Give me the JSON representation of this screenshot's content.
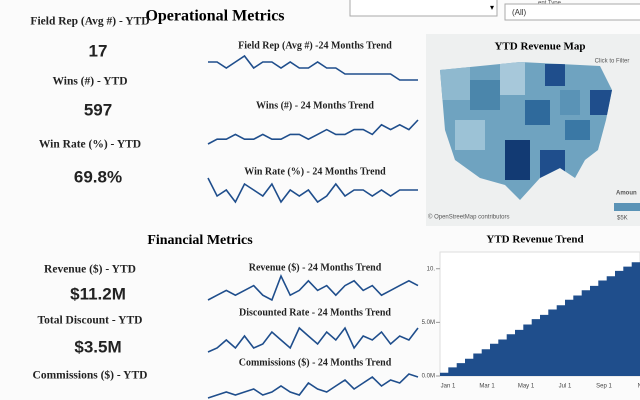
{
  "header": {
    "filter_label": "ent Type",
    "filter_value": "(All)"
  },
  "operational": {
    "title": "Operational Metrics",
    "kpis": [
      {
        "label": "Field Rep (Avg #) - YTD",
        "value": "17",
        "trend_title": "Field Rep (Avg #) -24 Months Trend",
        "trend": [
          6,
          6,
          5,
          6,
          7,
          5,
          6,
          6,
          5,
          6,
          5,
          5,
          6,
          5,
          5,
          4,
          4,
          4,
          4,
          4,
          4,
          3,
          3,
          3
        ]
      },
      {
        "label": "Wins (#) - YTD",
        "value": "597",
        "trend_title": "Wins (#) - 24 Months Trend",
        "trend": [
          2,
          3,
          3,
          4,
          3,
          3,
          4,
          3,
          3,
          4,
          4,
          3,
          4,
          5,
          4,
          4,
          5,
          5,
          4,
          6,
          5,
          6,
          5,
          7
        ]
      },
      {
        "label": "Win Rate (%) - YTD",
        "value": "69.8%",
        "trend_title": "Win Rate (%) - 24 Months Trend",
        "trend": [
          6,
          3,
          4,
          2,
          5,
          4,
          3,
          5,
          2,
          4,
          3,
          4,
          2,
          3,
          5,
          3,
          4,
          4,
          3,
          4,
          3,
          4,
          4,
          4
        ]
      }
    ]
  },
  "financial": {
    "title": "Financial Metrics",
    "kpis": [
      {
        "label": "Revenue ($) - YTD",
        "value": "$11.2M",
        "trend_title": "Revenue ($) - 24 Months Trend",
        "trend": [
          3,
          4,
          5,
          4,
          5,
          6,
          4,
          3,
          8,
          4,
          5,
          7,
          5,
          6,
          4,
          6,
          7,
          5,
          6,
          4,
          5,
          6,
          7,
          6
        ]
      },
      {
        "label": "Total Discount - YTD",
        "value": "$3.5M",
        "trend_title": "Discounted Rate - 24 Months Trend",
        "trend": [
          2,
          3,
          5,
          3,
          6,
          3,
          4,
          7,
          5,
          3,
          8,
          6,
          4,
          7,
          5,
          8,
          3,
          6,
          5,
          7,
          4,
          6,
          5,
          8
        ]
      },
      {
        "label": "Commissions ($) - YTD",
        "value": "",
        "trend_title": "Commissions ($) - 24 Months Trend",
        "trend": [
          1,
          2,
          3,
          2,
          3,
          4,
          2,
          3,
          5,
          3,
          2,
          6,
          4,
          3,
          5,
          7,
          4,
          6,
          8,
          5,
          7,
          6,
          9,
          8
        ]
      }
    ]
  },
  "map": {
    "title": "YTD Revenue Map",
    "hint": "Click to Filter",
    "credit": "© OpenStreetMap contributors",
    "legend_title": "Amoun",
    "legend_min": "$5K"
  },
  "trend_chart": {
    "type": "area",
    "title": "YTD Revenue Trend",
    "color": "#1f4e8c",
    "x_labels": [
      "Jan 1",
      "Mar 1",
      "May 1",
      "Jul 1",
      "Sep 1",
      "Nov"
    ],
    "values": [
      0.3,
      0.8,
      1.2,
      1.6,
      2.1,
      2.5,
      3.0,
      3.4,
      3.9,
      4.3,
      4.8,
      5.3,
      5.7,
      6.2,
      6.6,
      7.1,
      7.5,
      8.0,
      8.4,
      8.9,
      9.3,
      9.8,
      10.2,
      10.6
    ],
    "ylim": [
      0,
      11
    ],
    "yticks": [
      {
        "value": 0,
        "label": "0.0M"
      },
      {
        "value": 5,
        "label": "5.0M"
      },
      {
        "value": 10,
        "label": "10."
      }
    ]
  }
}
